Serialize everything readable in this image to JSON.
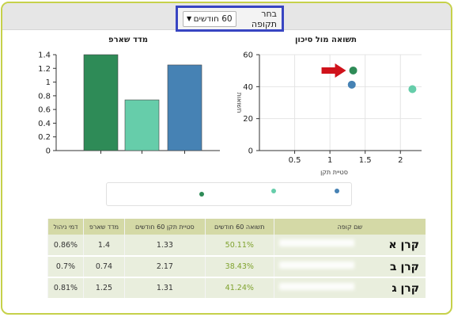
{
  "period": {
    "label": "בחר תקופה",
    "selected": "60 חודשים"
  },
  "sharpe_chart": {
    "title": "מדד שארפ",
    "y_ticks": [
      "0",
      "0.2",
      "0.4",
      "0.6",
      "0.8",
      "1",
      "1.2",
      "1.4"
    ]
  },
  "risk_chart": {
    "title": "תשואה מול סיכון",
    "y_axis_label": "תשואות",
    "x_axis_label": "סטיית תקן",
    "y_ticks": [
      "0",
      "20",
      "40",
      "60"
    ],
    "x_ticks": [
      "0.5",
      "1",
      "1.5",
      "2"
    ]
  },
  "colors": {
    "fund_a": "#2e8b57",
    "fund_b": "#66cdaa",
    "fund_c": "#4682b4",
    "highlight_arrow": "#d0121b",
    "frame": "#c6d14a",
    "selector_border": "#3845c2"
  },
  "chart_data": [
    {
      "type": "bar",
      "title": "מדד שארפ",
      "categories": [
        "קרן א",
        "קרן ב",
        "קרן ג"
      ],
      "values": [
        1.4,
        0.74,
        1.25
      ],
      "ylim": [
        0,
        1.4
      ]
    },
    {
      "type": "scatter",
      "title": "תשואה מול סיכון",
      "xlabel": "סטיית תקן",
      "ylabel": "תשואות",
      "xlim": [
        0,
        2.3
      ],
      "ylim": [
        0,
        60
      ],
      "points": [
        {
          "fund": "קרן א",
          "x": 1.33,
          "y": 50.11
        },
        {
          "fund": "קרן ב",
          "x": 2.17,
          "y": 38.43
        },
        {
          "fund": "קרן ג",
          "x": 1.31,
          "y": 41.24
        }
      ]
    }
  ],
  "table": {
    "headers": [
      "שם קופה",
      "תשואה 60 חודשים",
      "סטיית תקן 60 חודשים",
      "מדד שארפ",
      "דמי ניהול"
    ],
    "rows": [
      [
        "קרן א",
        "50.11%",
        "1.33",
        "1.4",
        "0.86%"
      ],
      [
        "קרן ב",
        "38.43%",
        "2.17",
        "0.74",
        "0.7%"
      ],
      [
        "קרן ג",
        "41.24%",
        "1.31",
        "1.25",
        "0.81%"
      ]
    ]
  }
}
